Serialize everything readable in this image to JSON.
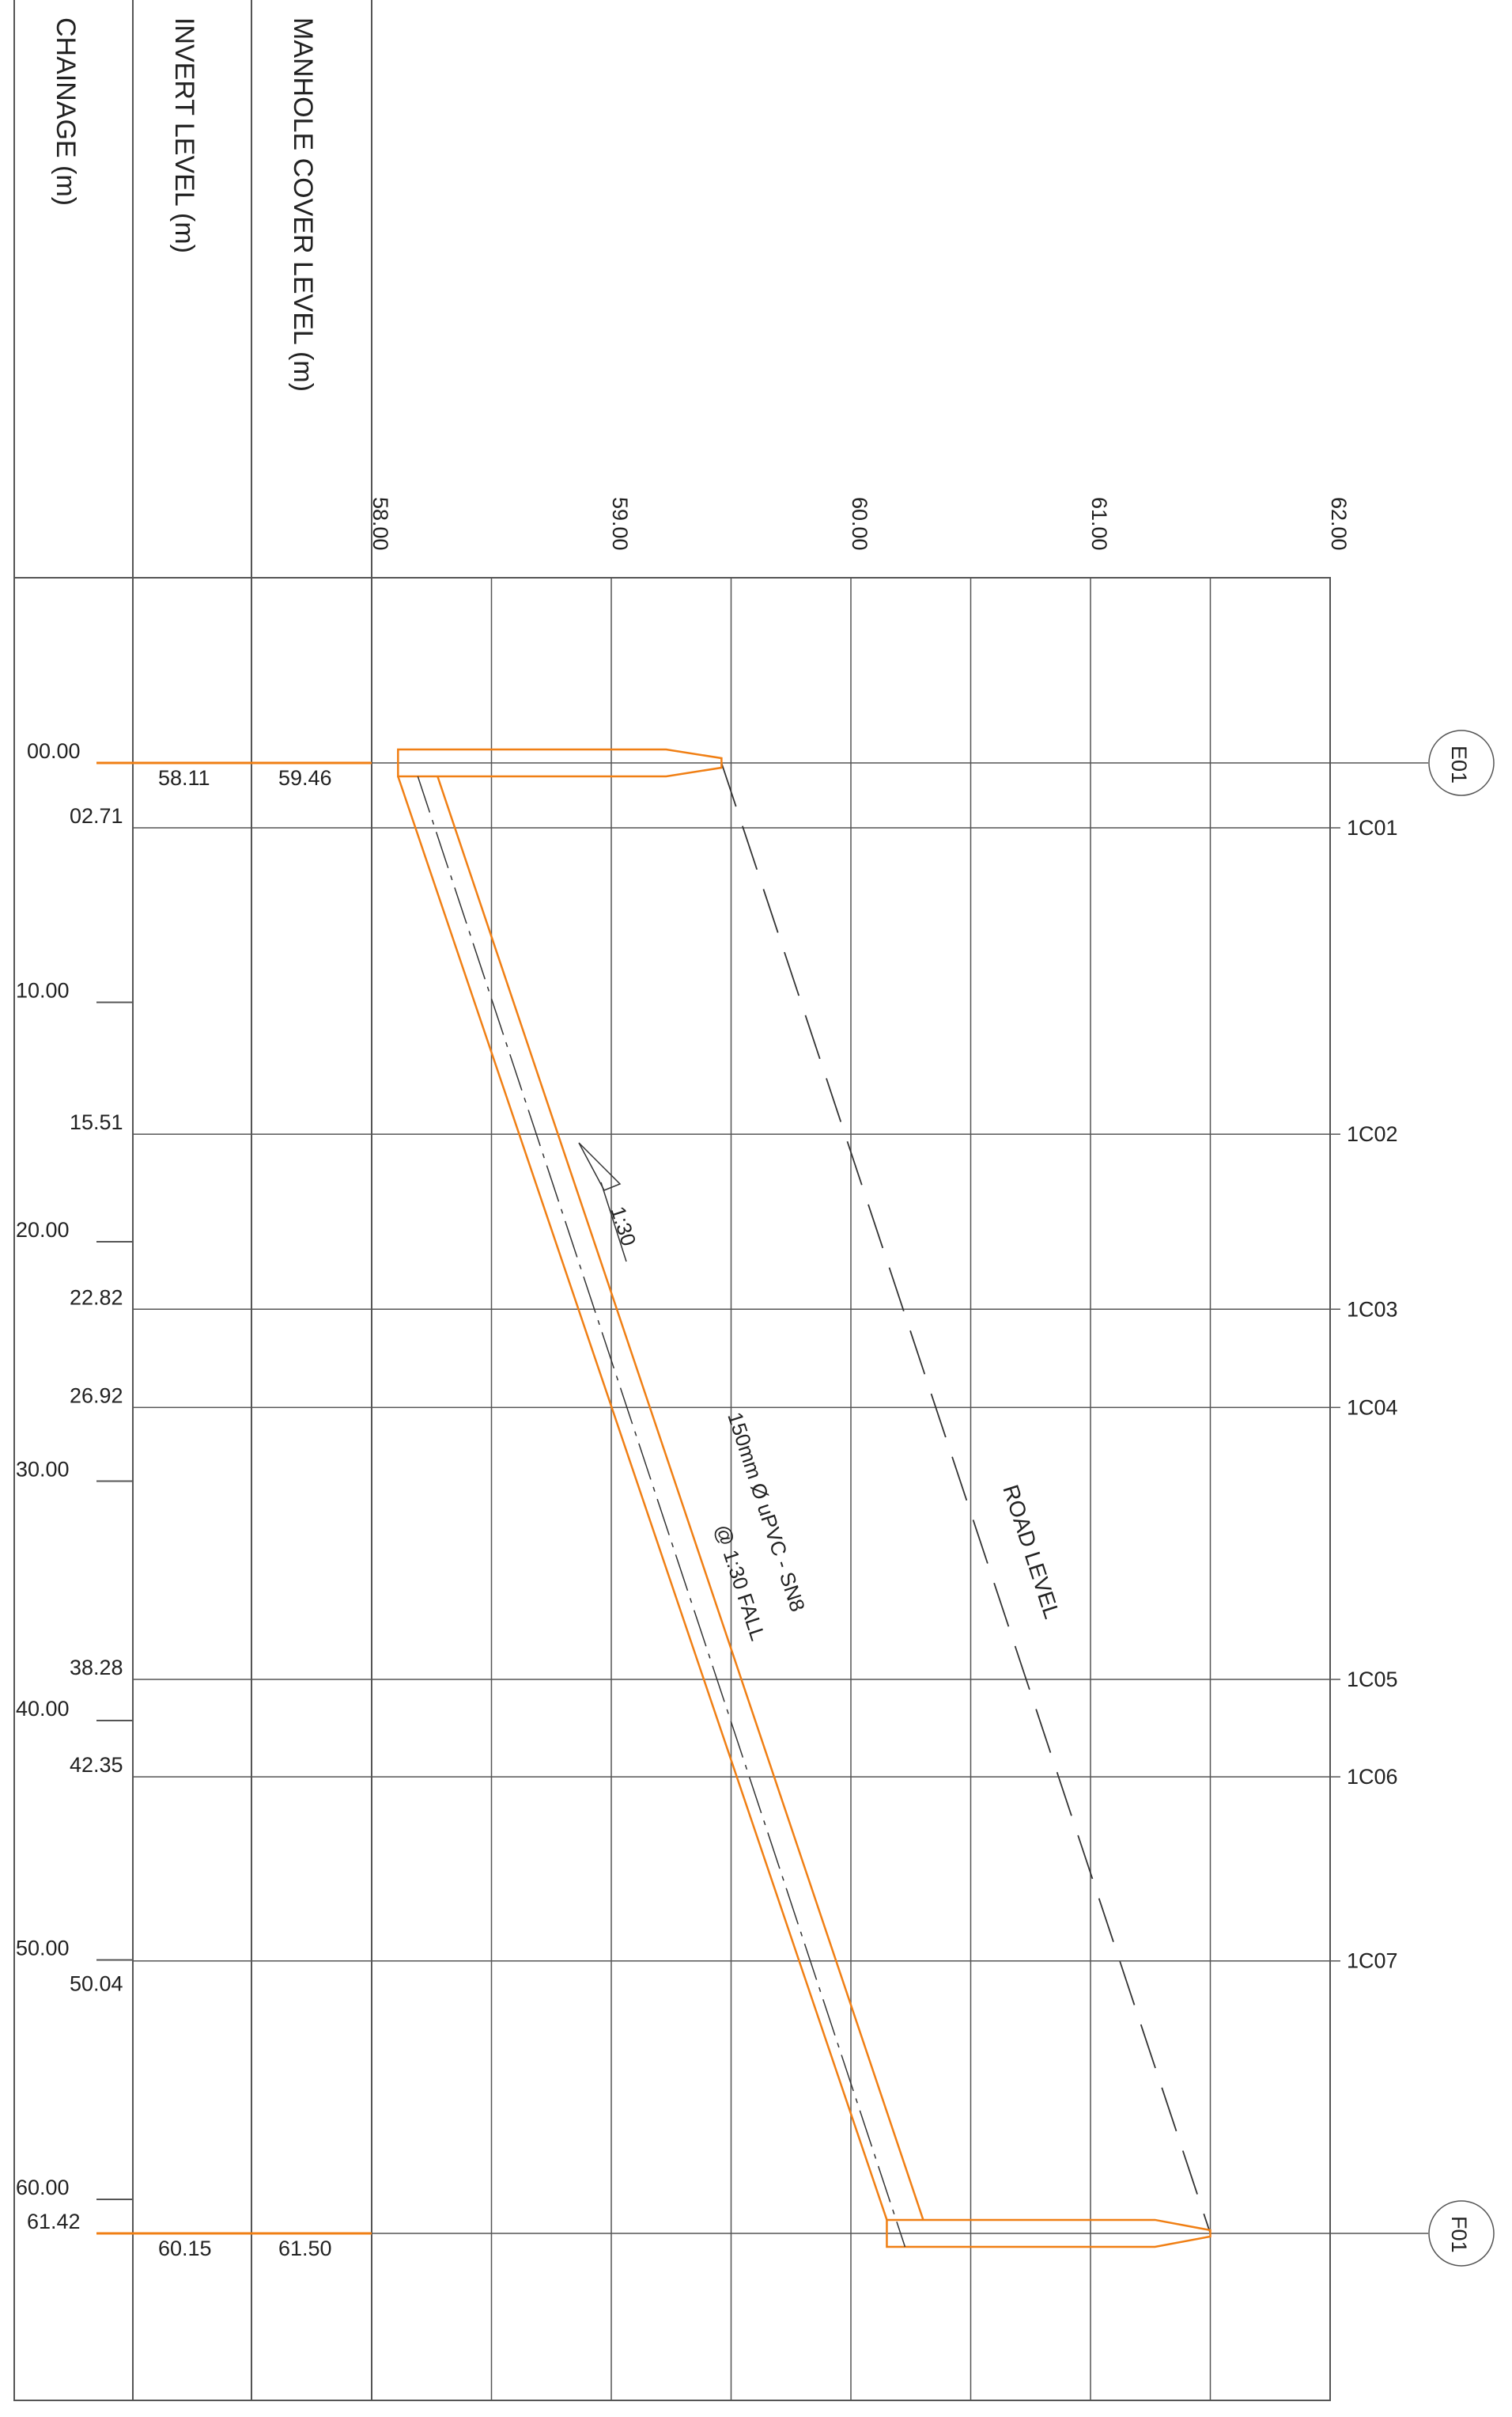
{
  "headers": {
    "chainage": "CHAINAGE (m)",
    "invert_level": "INVERT LEVEL (m)",
    "manhole_cover_level": "MANHOLE COVER LEVEL  (m)"
  },
  "level_scale": [
    "58.00",
    "59.00",
    "60.00",
    "61.00",
    "62.00"
  ],
  "chainage_ticks": [
    {
      "label": "10.00",
      "chainage": 10
    },
    {
      "label": "20.00",
      "chainage": 20
    },
    {
      "label": "30.00",
      "chainage": 30
    },
    {
      "label": "40.00",
      "chainage": 40
    },
    {
      "label": "50.00",
      "chainage": 50
    },
    {
      "label": "60.00",
      "chainage": 60
    }
  ],
  "connections": [
    {
      "chainage": 2.71,
      "label": "02.71",
      "id": "1C01"
    },
    {
      "chainage": 15.51,
      "label": "15.51",
      "id": "1C02"
    },
    {
      "chainage": 22.82,
      "label": "22.82",
      "id": "1C03"
    },
    {
      "chainage": 26.92,
      "label": "26.92",
      "id": "1C04"
    },
    {
      "chainage": 38.28,
      "label": "38.28",
      "id": "1C05"
    },
    {
      "chainage": 42.35,
      "label": "42.35",
      "id": "1C06"
    },
    {
      "chainage": 50.04,
      "label": "50.04",
      "id": "1C07"
    }
  ],
  "manholes": [
    {
      "id": "E01",
      "chainage": 0,
      "chainage_label": "00.00",
      "invert_level": "58.11",
      "cover_level": "59.46"
    },
    {
      "id": "F01",
      "chainage": 61.42,
      "chainage_label": "61.42",
      "invert_level": "60.15",
      "cover_level": "61.50"
    }
  ],
  "pipe": {
    "label_line1": "150mm Ø uPVC - SN8",
    "label_line2": "@ 1:30 FALL",
    "gradient": "1:30"
  },
  "road": {
    "label": "ROAD LEVEL"
  },
  "colors": {
    "pipe": "#f07f14",
    "grid": "#555555",
    "dashed": "#333333"
  }
}
